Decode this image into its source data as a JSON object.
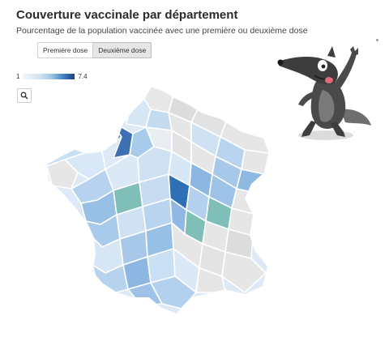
{
  "header": {
    "title": "Couverture vaccinale par département",
    "subtitle": "Pourcentage de la population vaccinée avec une première ou deuxième dose"
  },
  "toggle": {
    "options": [
      "Première dose",
      "Deuxième dose"
    ],
    "selected": "Deuxième dose"
  },
  "legend": {
    "min_label": "1",
    "max_label": "7.4",
    "scale_colors": [
      "#f2f6fb",
      "#d6e6f5",
      "#9ec7e6",
      "#4d8fc8",
      "#1a3f8a"
    ]
  },
  "toolbar": {
    "zoom_icon": "search-icon"
  },
  "map": {
    "no_data_color": "#e6e6e6",
    "highlight_teal": "#7fbfb8",
    "highlight_dark": "#2f6fb5"
  },
  "illustration": {
    "icon": "wolf-cartoon-icon"
  }
}
